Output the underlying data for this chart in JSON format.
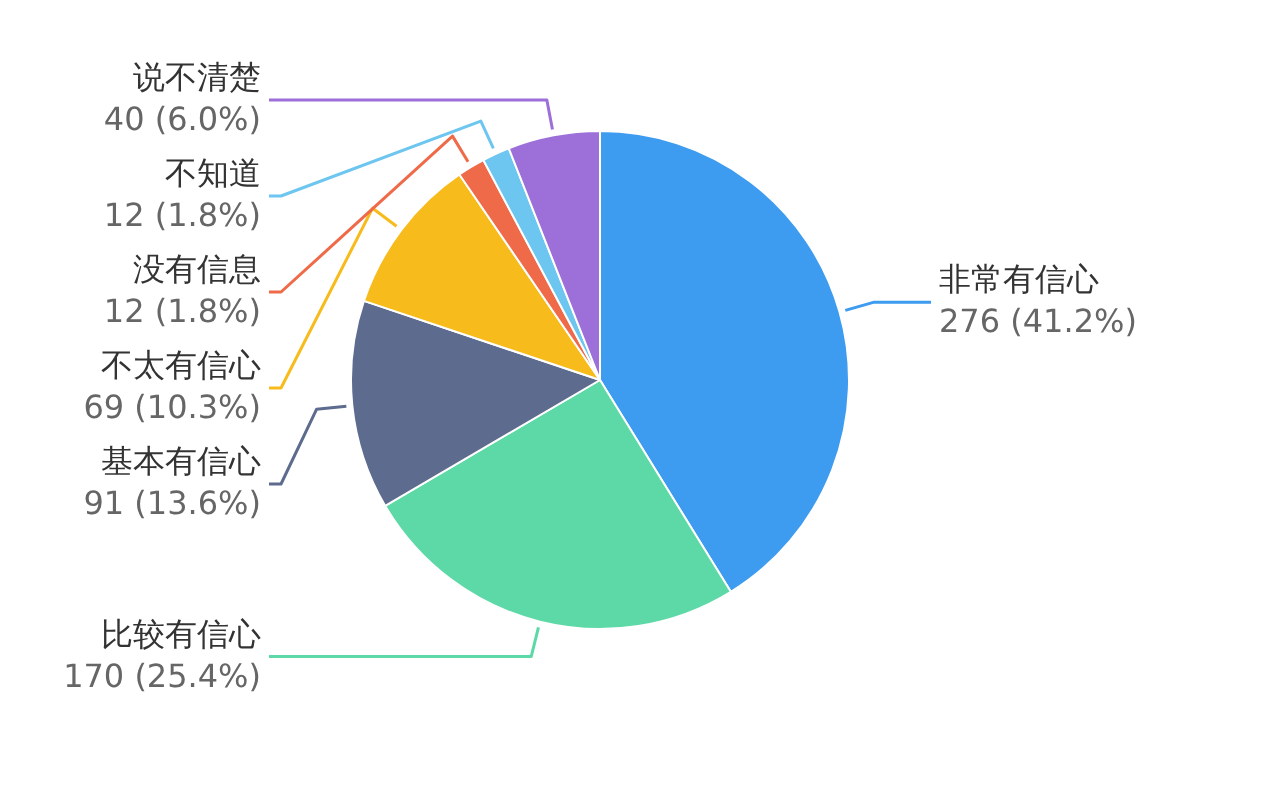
{
  "chart_data": {
    "type": "pie",
    "categories": [
      "非常有信心",
      "比较有信心",
      "基本有信心",
      "不太有信心",
      "没有信息",
      "不知道",
      "说不清楚"
    ],
    "values": [
      276,
      170,
      91,
      69,
      12,
      12,
      40
    ],
    "colors": [
      "#3d9bf0",
      "#5cd9a6",
      "#5d6b8f",
      "#f7bb1c",
      "#ef6a48",
      "#6cc6ef",
      "#9d6fd9"
    ],
    "value_labels": [
      "276 (41.2%)",
      "170 (25.4%)",
      "91 (13.6%)",
      "69 (10.3%)",
      "12 (1.8%)",
      "12 (1.8%)",
      "40 (6.0%)"
    ]
  }
}
